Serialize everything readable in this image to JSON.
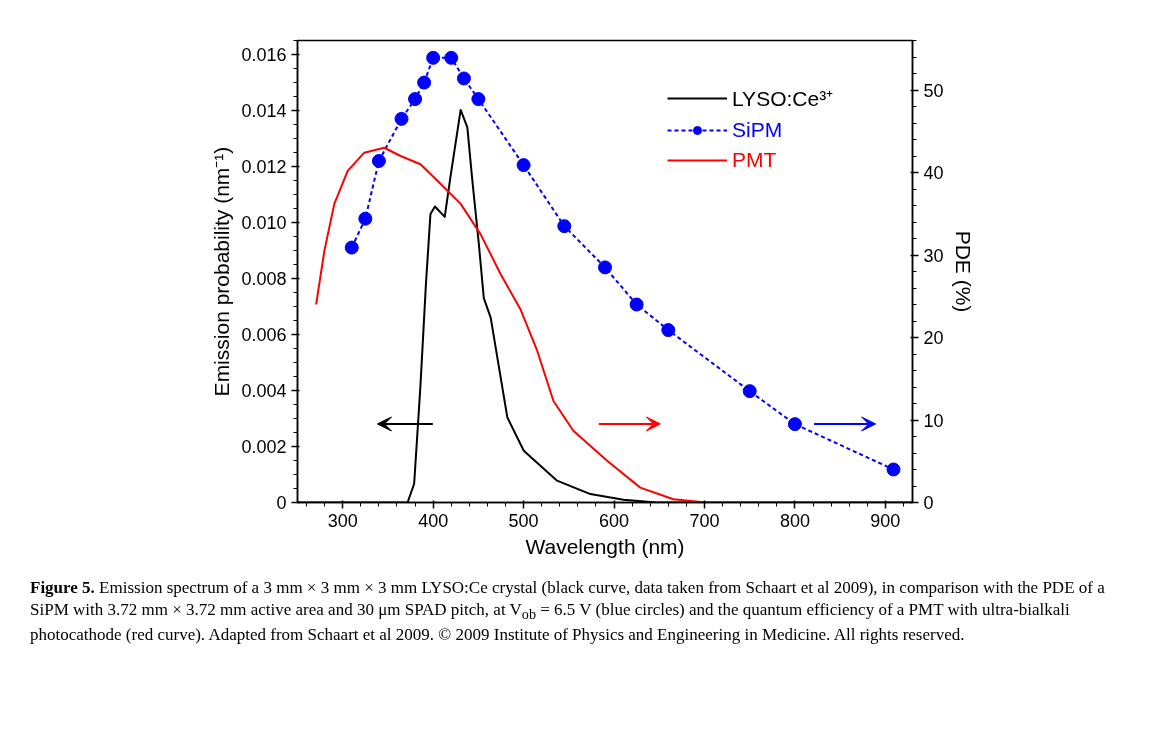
{
  "chart_data": {
    "type": "line",
    "xlabel": "Wavelength (nm)",
    "ylabel": "Emission probability (nm⁻¹)",
    "y2label": "PDE (%)",
    "xlim": [
      250,
      930
    ],
    "xticks": [
      300,
      400,
      500,
      600,
      700,
      800,
      900
    ],
    "ylim": [
      0,
      0.0165
    ],
    "yticks": [
      0,
      0.002,
      0.004,
      0.006,
      0.008,
      {
        "value": 0.01,
        "label": "0.010"
      },
      0.012,
      0.014,
      0.016
    ],
    "y2lim": [
      0,
      56
    ],
    "y2ticks": [
      0,
      10,
      20,
      30,
      40,
      50
    ],
    "grid": false,
    "legend": "top right",
    "series": [
      {
        "name": "LYSO:Ce³⁺",
        "color": "#000000",
        "line_style": "solid",
        "marker": "none",
        "x": [
          250,
          360,
          371.7,
          379,
          386,
          392,
          397,
          402,
          412.8,
          419,
          430.4,
          437.8,
          443,
          450.6,
          456,
          463.6,
          482,
          500.2,
          537,
          573.8,
          610.5,
          647,
          700,
          930
        ],
        "values": [
          0,
          0,
          0,
          0.00067,
          0.0042,
          0.0078,
          0.0103,
          0.01057,
          0.0102,
          0.0116,
          0.01402,
          0.0134,
          0.0116,
          0.0092,
          0.0073,
          0.0066,
          0.00304,
          0.00185,
          0.00078,
          0.0003,
          0.0001,
          0,
          0,
          0
        ]
      },
      {
        "name": "SiPM",
        "color": "#0000ff",
        "line_style": "dashed",
        "marker": "circle",
        "axis": "y2",
        "x": [
          310,
          325,
          340,
          365,
          380,
          390,
          400,
          420,
          434,
          450,
          500,
          545,
          590,
          625,
          660,
          750,
          800,
          909
        ],
        "values": [
          30.9,
          34.4,
          41.4,
          46.5,
          48.9,
          50.9,
          53.9,
          53.9,
          51.4,
          48.9,
          40.9,
          33.5,
          28.5,
          24.0,
          20.9,
          13.5,
          9.5,
          4.0
        ]
      },
      {
        "name": "PMT",
        "color": "#ff0000",
        "line_style": "solid",
        "marker": "none",
        "axis": "y2",
        "x": [
          270.6,
          279.7,
          290.7,
          305.5,
          323.8,
          345.9,
          364,
          386,
          404.7,
          430.4,
          452.5,
          474.5,
          496.6,
          515,
          533,
          555,
          592,
          629,
          665.6,
          702
        ],
        "values": [
          24.0,
          30.5,
          36.2,
          40.2,
          42.4,
          43.0,
          42.0,
          41.0,
          39.0,
          36.2,
          32.5,
          27.7,
          23.4,
          18.4,
          12.3,
          8.7,
          5.1,
          1.8,
          0.4,
          0
        ]
      }
    ],
    "annotations": [
      "Figure 5. Emission spectrum of a 3 mm × 3 mm × 3 mm LYSO:Ce crystal (black curve, data taken from Schaart et al 2009), in comparison with the PDE of a SiPM with 3.72 mm × 3.72 mm active area and 30 μm SPAD pitch, at V$_{ob}$ = 6.5 V (blue circles) and the quantum efficiency of a PMT with ultra-bialkali photocathode (red curve). Adapted from Schaart et al 2009. © 2009 Institute of Physics and Engineering in Medicine. All rights reserved."
    ]
  }
}
